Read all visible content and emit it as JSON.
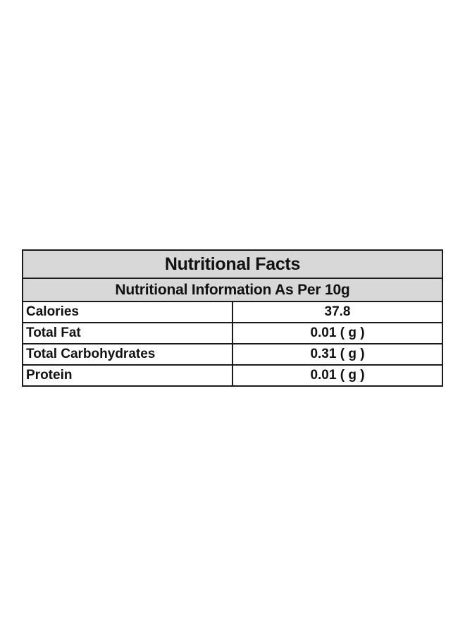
{
  "table": {
    "title": "Nutritional Facts",
    "subtitle": "Nutritional Information As Per 10g",
    "rows": [
      {
        "label": "Calories",
        "value": "37.8"
      },
      {
        "label": "Total Fat",
        "value": "0.01 ( g )"
      },
      {
        "label": "Total Carbohydrates",
        "value": "0.31 ( g )"
      },
      {
        "label": "Protein",
        "value": "0.01 ( g )"
      }
    ]
  },
  "colors": {
    "header_background": "#d8d8d8",
    "border": "#1a1a1a",
    "text": "#111111"
  }
}
